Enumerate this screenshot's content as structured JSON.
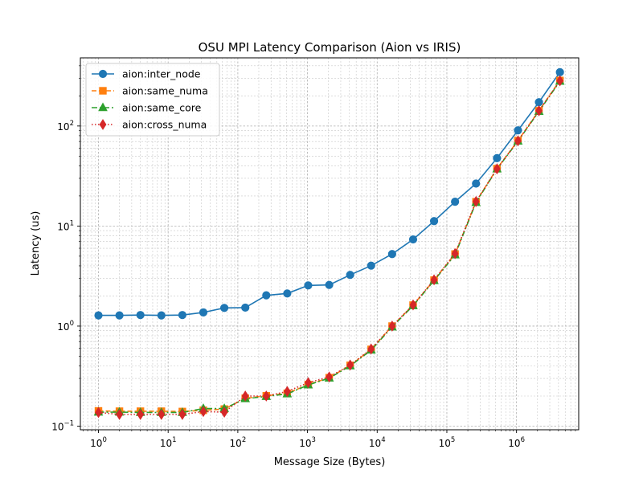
{
  "chart_data": {
    "type": "line",
    "title": "OSU MPI Latency Comparison (Aion vs IRIS)",
    "xlabel": "Message Size (Bytes)",
    "ylabel": "Latency (us)",
    "xscale": "log",
    "yscale": "log",
    "xlim": [
      0.55,
      7800000
    ],
    "ylim": [
      0.092,
      480
    ],
    "grid": true,
    "legend_position": "top-left",
    "x": [
      1,
      2,
      4,
      8,
      16,
      32,
      64,
      128,
      256,
      512,
      1024,
      2048,
      4096,
      8192,
      16384,
      32768,
      65536,
      131072,
      262144,
      524288,
      1048576,
      2097152,
      4194304
    ],
    "x_ticks": [
      {
        "value": 1,
        "base": "10",
        "exp": "0"
      },
      {
        "value": 10,
        "base": "10",
        "exp": "1"
      },
      {
        "value": 100,
        "base": "10",
        "exp": "2"
      },
      {
        "value": 1000,
        "base": "10",
        "exp": "3"
      },
      {
        "value": 10000,
        "base": "10",
        "exp": "4"
      },
      {
        "value": 100000,
        "base": "10",
        "exp": "5"
      },
      {
        "value": 1000000,
        "base": "10",
        "exp": "6"
      }
    ],
    "y_ticks": [
      {
        "value": 0.1,
        "base": "10",
        "exp": "−1"
      },
      {
        "value": 1,
        "base": "10",
        "exp": "0"
      },
      {
        "value": 10,
        "base": "10",
        "exp": "1"
      },
      {
        "value": 100,
        "base": "10",
        "exp": "2"
      }
    ],
    "series": [
      {
        "name": "aion:inter_node",
        "color": "#1f77b4",
        "marker": "circle",
        "linestyle": "solid",
        "values": [
          1.28,
          1.28,
          1.29,
          1.28,
          1.29,
          1.37,
          1.52,
          1.53,
          2.03,
          2.12,
          2.55,
          2.58,
          3.25,
          4.02,
          5.25,
          7.35,
          11.2,
          17.5,
          26.6,
          47.7,
          90.5,
          173,
          345
        ]
      },
      {
        "name": "aion:same_numa",
        "color": "#ff7f0e",
        "marker": "square",
        "linestyle": "dashed",
        "values": [
          0.142,
          0.141,
          0.141,
          0.141,
          0.14,
          0.144,
          0.148,
          0.19,
          0.201,
          0.213,
          0.26,
          0.305,
          0.405,
          0.585,
          1.0,
          1.62,
          2.88,
          5.25,
          17.5,
          37.5,
          71.5,
          142,
          285
        ]
      },
      {
        "name": "aion:same_core",
        "color": "#2ca02c",
        "marker": "triangle",
        "linestyle": "dashdot",
        "values": [
          0.138,
          0.138,
          0.137,
          0.137,
          0.137,
          0.15,
          0.15,
          0.188,
          0.198,
          0.21,
          0.258,
          0.302,
          0.4,
          0.575,
          0.98,
          1.6,
          2.85,
          5.15,
          17.2,
          37.2,
          70.5,
          140,
          280
        ]
      },
      {
        "name": "aion:cross_numa",
        "color": "#d62728",
        "marker": "diamond",
        "linestyle": "dotted",
        "values": [
          0.137,
          0.131,
          0.131,
          0.131,
          0.131,
          0.14,
          0.138,
          0.2,
          0.2,
          0.222,
          0.272,
          0.31,
          0.408,
          0.59,
          1.0,
          1.63,
          2.9,
          5.3,
          17.6,
          37.3,
          71,
          142,
          283
        ]
      }
    ]
  }
}
